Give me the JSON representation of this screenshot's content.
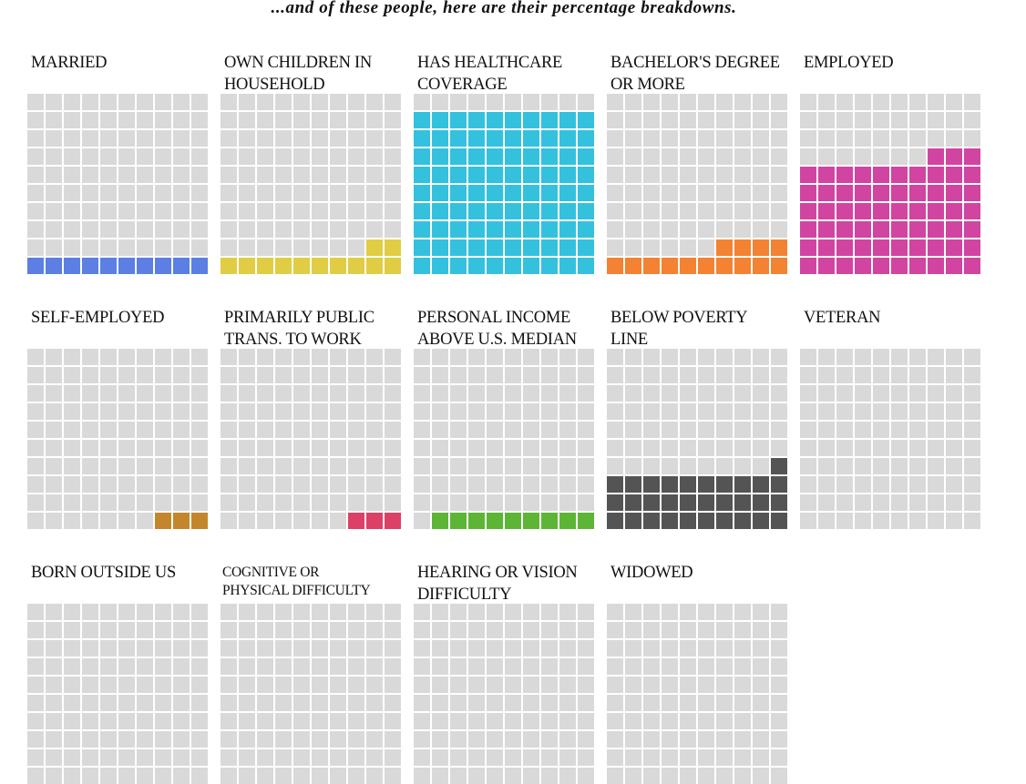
{
  "chart_data": {
    "type": "waffle",
    "title": "...and of these people, here are their percentage breakdowns.",
    "grid": "10x10",
    "empty_color": "#d9d9d9",
    "panels": [
      {
        "label": "MARRIED",
        "value": 10,
        "color": "#5b7fe3"
      },
      {
        "label": "OWN CHILDREN IN\nHOUSEHOLD",
        "value": 12,
        "color": "#e0cd44"
      },
      {
        "label": "HAS HEALTHCARE\nCOVERAGE",
        "value": 90,
        "color": "#33c1de"
      },
      {
        "label": "BACHELOR'S DEGREE\nOR MORE",
        "value": 14,
        "color": "#f38233"
      },
      {
        "label": "EMPLOYED",
        "value": 63,
        "color": "#d144a2"
      },
      {
        "label": "SELF-EMPLOYED",
        "value": 3,
        "color": "#c4862c"
      },
      {
        "label": "PRIMARILY PUBLIC\nTRANS. TO WORK",
        "value": 3,
        "color": "#dc4066"
      },
      {
        "label": "PERSONAL INCOME\nABOVE U.S. MEDIAN",
        "value": 9,
        "color": "#5db535"
      },
      {
        "label": "BELOW POVERTY\nLINE",
        "value": 31,
        "color": "#545454"
      },
      {
        "label": "VETERAN",
        "value": 0,
        "color": "#999999"
      },
      {
        "label": "BORN OUTSIDE US",
        "value": null,
        "color": null
      },
      {
        "label": "COGNITIVE OR\nPHYSICAL DIFFICULTY",
        "value": null,
        "color": null
      },
      {
        "label": "HEARING OR VISION\nDIFFICULTY",
        "value": null,
        "color": null
      },
      {
        "label": "WIDOWED",
        "value": null,
        "color": null
      }
    ]
  }
}
